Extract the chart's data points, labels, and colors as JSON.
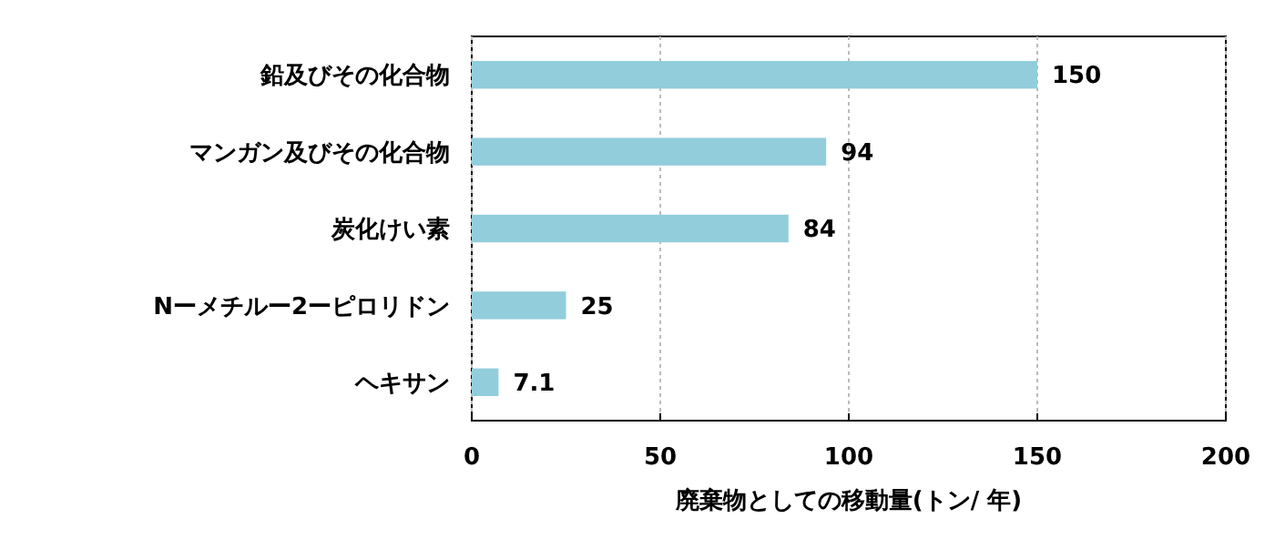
{
  "chart_data": {
    "type": "bar",
    "orientation": "horizontal",
    "xlabel": "廃棄物としての移動量(トン/ 年)",
    "categories": [
      "鉛及びその化合物",
      "マンガン及びその化合物",
      "炭化けい素",
      "Nーメチルー2ーピロリドン",
      "ヘキサン"
    ],
    "values": [
      150,
      94,
      84,
      25,
      7.1
    ],
    "color": "#92cddc",
    "data_labels": true,
    "xlim": [
      0,
      200
    ],
    "xticks": [
      0,
      50,
      100,
      150,
      200
    ],
    "grid": "x"
  }
}
